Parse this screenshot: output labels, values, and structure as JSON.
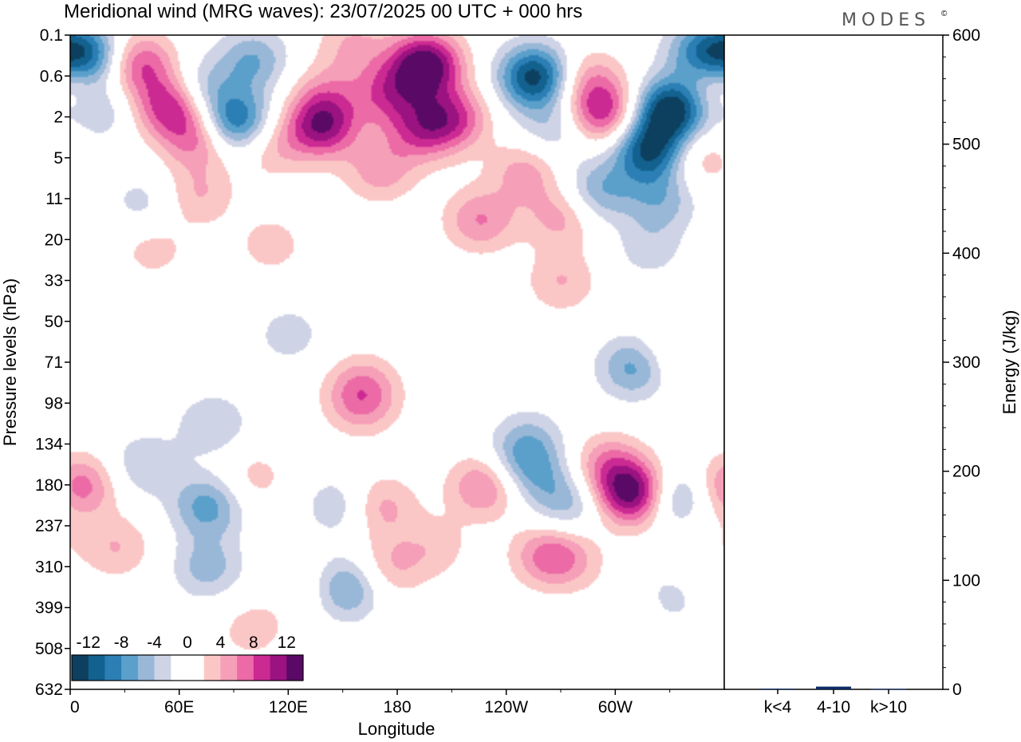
{
  "chart_data": [
    {
      "type": "heatmap",
      "title": "Meridional wind (MRG waves):  23/07/2025  00 UTC  + 000 hrs",
      "brand": "MODES",
      "brand_mark": "©",
      "xlabel": "Longitude",
      "ylabel": "Pressure levels (hPa)",
      "x_ticks": [
        "0",
        "60E",
        "120E",
        "180",
        "120W",
        "60W"
      ],
      "x_range_deg": [
        0,
        360
      ],
      "y_ticks": [
        "0.1",
        "0.6",
        "2",
        "5",
        "11",
        "20",
        "33",
        "50",
        "71",
        "98",
        "134",
        "180",
        "237",
        "310",
        "399",
        "508",
        "632"
      ],
      "colorbar": {
        "labels": [
          "-12",
          "-8",
          "-4",
          "0",
          "4",
          "8",
          "12"
        ],
        "colors": [
          "#0d3f5e",
          "#12618f",
          "#2b7fb5",
          "#5b9fcb",
          "#99b8d8",
          "#cfd3e6",
          "#ffffff",
          "#ffffff",
          "#fbc7c6",
          "#f59fb8",
          "#ec6aa6",
          "#cc2a93",
          "#9b1281",
          "#5a0a66"
        ]
      },
      "blobs": [
        {
          "lon": 8,
          "lev": 0.5,
          "amp": -11
        },
        {
          "lon": 38,
          "lev": 0.7,
          "amp": 8
        },
        {
          "lon": 70,
          "lev": 1.3,
          "amp": -5
        },
        {
          "lon": 100,
          "lev": 0.6,
          "amp": -6
        },
        {
          "lon": 155,
          "lev": 0.2,
          "amp": 4
        },
        {
          "lon": 195,
          "lev": 0.7,
          "amp": 14
        },
        {
          "lon": 175,
          "lev": 1.4,
          "amp": 7
        },
        {
          "lon": 255,
          "lev": 1.0,
          "amp": -13
        },
        {
          "lon": 285,
          "lev": 1.1,
          "amp": 5
        },
        {
          "lon": 348,
          "lev": 0.4,
          "amp": -9
        },
        {
          "lon": 358,
          "lev": 1.1,
          "amp": 5
        },
        {
          "lon": 15,
          "lev": 1.8,
          "amp": -4
        },
        {
          "lon": 55,
          "lev": 1.7,
          "amp": 10
        },
        {
          "lon": 70,
          "lev": 2.5,
          "amp": 7
        },
        {
          "lon": 90,
          "lev": 2.1,
          "amp": -11
        },
        {
          "lon": 138,
          "lev": 2.2,
          "amp": 11
        },
        {
          "lon": 140,
          "lev": 1.4,
          "amp": 4
        },
        {
          "lon": 192,
          "lev": 2.3,
          "amp": 7
        },
        {
          "lon": 210,
          "lev": 2.0,
          "amp": 8
        },
        {
          "lon": 265,
          "lev": 2.3,
          "amp": -4
        },
        {
          "lon": 293,
          "lev": 1.9,
          "amp": 9
        },
        {
          "lon": 330,
          "lev": 1.8,
          "amp": -14
        },
        {
          "lon": 318,
          "lev": 2.8,
          "amp": -12
        },
        {
          "lon": 110,
          "lev": 2.7,
          "amp": 4
        },
        {
          "lon": 170,
          "lev": 3.3,
          "amp": 5
        },
        {
          "lon": 250,
          "lev": 3.3,
          "amp": 5
        },
        {
          "lon": 290,
          "lev": 3.8,
          "amp": -6
        },
        {
          "lon": 325,
          "lev": 4.0,
          "amp": -5
        },
        {
          "lon": 345,
          "lev": 3.0,
          "amp": 4
        },
        {
          "lon": 70,
          "lev": 3.9,
          "amp": 4
        },
        {
          "lon": 225,
          "lev": 4.5,
          "amp": 6
        },
        {
          "lon": 270,
          "lev": 4.4,
          "amp": 5
        },
        {
          "lon": 318,
          "lev": 5.2,
          "amp": -3
        },
        {
          "lon": 40,
          "lev": 4.1,
          "amp": -3
        },
        {
          "lon": 45,
          "lev": 5.2,
          "amp": 3
        },
        {
          "lon": 110,
          "lev": 5.1,
          "amp": 3
        },
        {
          "lon": 270,
          "lev": 6.0,
          "amp": 4
        },
        {
          "lon": 120,
          "lev": 7.3,
          "amp": -3
        },
        {
          "lon": 310,
          "lev": 8.1,
          "amp": -7
        },
        {
          "lon": 330,
          "lev": 7.8,
          "amp": 3
        },
        {
          "lon": 160,
          "lev": 8.5,
          "amp": 4
        },
        {
          "lon": 5,
          "lev": 11.0,
          "amp": 7
        },
        {
          "lon": 25,
          "lev": 12.5,
          "amp": 4
        },
        {
          "lon": 40,
          "lev": 10.5,
          "amp": -4
        },
        {
          "lon": 75,
          "lev": 11.5,
          "amp": -7
        },
        {
          "lon": 75,
          "lev": 13.0,
          "amp": -5
        },
        {
          "lon": 78,
          "lev": 9.5,
          "amp": -4
        },
        {
          "lon": 100,
          "lev": 10.8,
          "amp": 3
        },
        {
          "lon": 100,
          "lev": 14.5,
          "amp": 3
        },
        {
          "lon": 135,
          "lev": 13.5,
          "amp": 3
        },
        {
          "lon": 150,
          "lev": 13.5,
          "amp": -8
        },
        {
          "lon": 148,
          "lev": 11.5,
          "amp": -4
        },
        {
          "lon": 160,
          "lev": 9.0,
          "amp": 5
        },
        {
          "lon": 170,
          "lev": 11.5,
          "amp": 5
        },
        {
          "lon": 175,
          "lev": 13.0,
          "amp": 4
        },
        {
          "lon": 200,
          "lev": 12.5,
          "amp": 3
        },
        {
          "lon": 228,
          "lev": 11.0,
          "amp": 7
        },
        {
          "lon": 248,
          "lev": 10.5,
          "amp": -5
        },
        {
          "lon": 252,
          "lev": 9.9,
          "amp": -4
        },
        {
          "lon": 263,
          "lev": 11.0,
          "amp": -3
        },
        {
          "lon": 275,
          "lev": 11.5,
          "amp": -4
        },
        {
          "lon": 262,
          "lev": 12.7,
          "amp": 6
        },
        {
          "lon": 275,
          "lev": 12.8,
          "amp": 3
        },
        {
          "lon": 295,
          "lev": 10.5,
          "amp": 6
        },
        {
          "lon": 310,
          "lev": 11.2,
          "amp": 14
        },
        {
          "lon": 312,
          "lev": 14.0,
          "amp": 3
        },
        {
          "lon": 330,
          "lev": 11.3,
          "amp": -7
        },
        {
          "lon": 325,
          "lev": 13.8,
          "amp": -4
        },
        {
          "lon": 345,
          "lev": 12.5,
          "amp": 2
        },
        {
          "lon": 210,
          "lev": 15.5,
          "amp": 2
        },
        {
          "lon": 250,
          "lev": 15.0,
          "amp": -2
        },
        {
          "lon": 60,
          "lev": 15.5,
          "amp": 2
        },
        {
          "lon": 5,
          "lev": 15.5,
          "amp": -2
        }
      ]
    },
    {
      "type": "bar",
      "categories": [
        "k<4",
        "4-10",
        "k>10"
      ],
      "values": [
        0.6,
        2.5,
        0.3
      ],
      "ylabel": "Energy (J/kg)",
      "ylim": [
        0,
        600
      ],
      "y_ticks": [
        "0",
        "100",
        "200",
        "300",
        "400",
        "500",
        "600"
      ],
      "bar_color": "#0b2a66"
    }
  ]
}
